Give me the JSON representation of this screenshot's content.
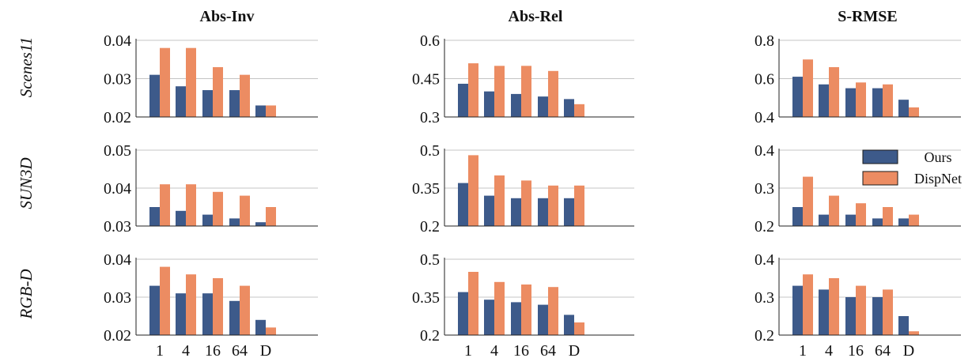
{
  "colors": {
    "ours": "#3d5a8a",
    "dispnet": "#ec8c62",
    "grid": "#c4c4c4",
    "axis": "#222222"
  },
  "column_titles": [
    "Abs-Inv",
    "Abs-Rel",
    "S-RMSE"
  ],
  "row_labels": [
    "Scenes11",
    "SUN3D",
    "RGB-D"
  ],
  "legend": {
    "items": [
      "Ours",
      "DispNet"
    ],
    "placement": "top-right"
  },
  "chart_data": [
    {
      "type": "bar",
      "title": "Abs-Inv",
      "row": "Scenes11",
      "categories": [
        "1",
        "4",
        "16",
        "64",
        "D"
      ],
      "ylim": [
        0.02,
        0.04
      ],
      "yticks": [
        "0.02",
        "0.03",
        "0.04"
      ],
      "series": [
        {
          "name": "Ours",
          "values": [
            0.031,
            0.028,
            0.027,
            0.027,
            0.023
          ]
        },
        {
          "name": "DispNet",
          "values": [
            0.038,
            0.038,
            0.033,
            0.031,
            0.023
          ]
        }
      ]
    },
    {
      "type": "bar",
      "title": "Abs-Rel",
      "row": "Scenes11",
      "categories": [
        "1",
        "4",
        "16",
        "64",
        "D"
      ],
      "ylim": [
        0.3,
        0.6
      ],
      "yticks": [
        "0.3",
        "0.45",
        "0.6"
      ],
      "series": [
        {
          "name": "Ours",
          "values": [
            0.43,
            0.4,
            0.39,
            0.38,
            0.37
          ]
        },
        {
          "name": "DispNet",
          "values": [
            0.51,
            0.5,
            0.5,
            0.48,
            0.35
          ]
        }
      ]
    },
    {
      "type": "bar",
      "title": "S-RMSE",
      "row": "Scenes11",
      "categories": [
        "1",
        "4",
        "16",
        "64",
        "D"
      ],
      "ylim": [
        0.4,
        0.8
      ],
      "yticks": [
        "0.4",
        "0.6",
        "0.8"
      ],
      "series": [
        {
          "name": "Ours",
          "values": [
            0.61,
            0.57,
            0.55,
            0.55,
            0.49
          ]
        },
        {
          "name": "DispNet",
          "values": [
            0.7,
            0.66,
            0.58,
            0.57,
            0.45
          ]
        }
      ]
    },
    {
      "type": "bar",
      "row": "SUN3D",
      "categories": [
        "1",
        "4",
        "16",
        "64",
        "D"
      ],
      "ylim": [
        0.03,
        0.05
      ],
      "yticks": [
        "0.03",
        "0.04",
        "0.05"
      ],
      "series": [
        {
          "name": "Ours",
          "values": [
            0.035,
            0.034,
            0.033,
            0.032,
            0.031
          ]
        },
        {
          "name": "DispNet",
          "values": [
            0.041,
            0.041,
            0.039,
            0.038,
            0.035
          ]
        }
      ]
    },
    {
      "type": "bar",
      "row": "SUN3D",
      "categories": [
        "1",
        "4",
        "16",
        "64",
        "D"
      ],
      "ylim": [
        0.2,
        0.5
      ],
      "yticks": [
        "0.2",
        "0.35",
        "0.5"
      ],
      "series": [
        {
          "name": "Ours",
          "values": [
            0.37,
            0.32,
            0.31,
            0.31,
            0.31
          ]
        },
        {
          "name": "DispNet",
          "values": [
            0.48,
            0.4,
            0.38,
            0.36,
            0.36
          ]
        }
      ]
    },
    {
      "type": "bar",
      "row": "SUN3D",
      "categories": [
        "1",
        "4",
        "16",
        "64",
        "D"
      ],
      "ylim": [
        0.2,
        0.4
      ],
      "yticks": [
        "0.2",
        "0.3",
        "0.4"
      ],
      "legend": true,
      "series": [
        {
          "name": "Ours",
          "values": [
            0.25,
            0.23,
            0.23,
            0.22,
            0.22
          ]
        },
        {
          "name": "DispNet",
          "values": [
            0.33,
            0.28,
            0.26,
            0.25,
            0.23
          ]
        }
      ]
    },
    {
      "type": "bar",
      "row": "RGB-D",
      "categories": [
        "1",
        "4",
        "16",
        "64",
        "D"
      ],
      "ylim": [
        0.02,
        0.04
      ],
      "yticks": [
        "0.02",
        "0.03",
        "0.04"
      ],
      "show_xticks": true,
      "series": [
        {
          "name": "Ours",
          "values": [
            0.033,
            0.031,
            0.031,
            0.029,
            0.024
          ]
        },
        {
          "name": "DispNet",
          "values": [
            0.038,
            0.036,
            0.035,
            0.033,
            0.022
          ]
        }
      ]
    },
    {
      "type": "bar",
      "row": "RGB-D",
      "categories": [
        "1",
        "4",
        "16",
        "64",
        "D"
      ],
      "ylim": [
        0.2,
        0.5
      ],
      "yticks": [
        "0.2",
        "0.35",
        "0.5"
      ],
      "show_xticks": true,
      "series": [
        {
          "name": "Ours",
          "values": [
            0.37,
            0.34,
            0.33,
            0.32,
            0.28
          ]
        },
        {
          "name": "DispNet",
          "values": [
            0.45,
            0.41,
            0.4,
            0.39,
            0.25
          ]
        }
      ]
    },
    {
      "type": "bar",
      "row": "RGB-D",
      "categories": [
        "1",
        "4",
        "16",
        "64",
        "D"
      ],
      "ylim": [
        0.2,
        0.4
      ],
      "yticks": [
        "0.2",
        "0.3",
        "0.4"
      ],
      "show_xticks": true,
      "series": [
        {
          "name": "Ours",
          "values": [
            0.33,
            0.32,
            0.3,
            0.3,
            0.25
          ]
        },
        {
          "name": "DispNet",
          "values": [
            0.36,
            0.35,
            0.33,
            0.32,
            0.21
          ]
        }
      ]
    }
  ]
}
